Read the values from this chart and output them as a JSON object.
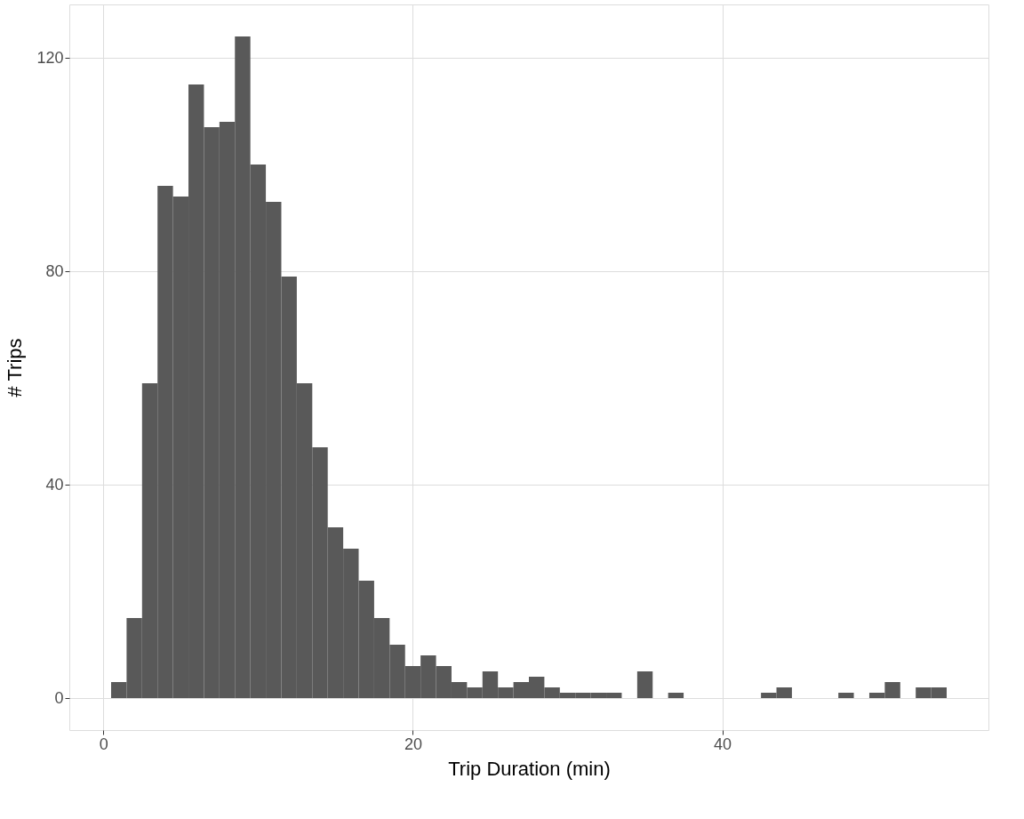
{
  "chart_data": {
    "type": "histogram",
    "xlabel": "Trip Duration (min)",
    "ylabel": "# Trips",
    "color": "#595959",
    "bins": [
      0.5,
      1.5,
      2.5,
      3.5,
      4.5,
      5.5,
      6.5,
      7.5,
      8.5,
      9.5,
      10.5,
      11.5,
      12.5,
      13.5,
      14.5,
      15.5,
      16.5,
      17.5,
      18.5,
      19.5,
      20.5,
      21.5,
      22.5,
      23.5,
      24.5,
      25.5,
      26.5,
      27.5,
      28.5,
      29.5,
      30.5,
      31.5,
      32.5,
      33.5,
      34.5,
      35.5,
      36.5,
      37.5,
      38.5,
      39.5,
      40.5,
      41.5,
      42.5,
      43.5,
      44.5,
      45.5,
      46.5,
      47.5,
      48.5,
      49.5,
      50.5,
      51.5,
      52.5,
      53.5,
      54.5
    ],
    "values": [
      3,
      15,
      59,
      96,
      94,
      115,
      107,
      108,
      124,
      100,
      93,
      79,
      59,
      47,
      32,
      28,
      22,
      15,
      10,
      6,
      8,
      6,
      3,
      2,
      5,
      2,
      3,
      4,
      2,
      1,
      1,
      1,
      1,
      0,
      5,
      0,
      1,
      0,
      0,
      0,
      0,
      0,
      1,
      2,
      0,
      0,
      0,
      1,
      0,
      1,
      3,
      0,
      2,
      2
    ],
    "xlim": [
      -2.2,
      57.2
    ],
    "ylim": [
      -6,
      130
    ],
    "xticks": [
      0,
      20,
      40
    ],
    "yticks": [
      0,
      40,
      80,
      120
    ],
    "grid": true
  }
}
